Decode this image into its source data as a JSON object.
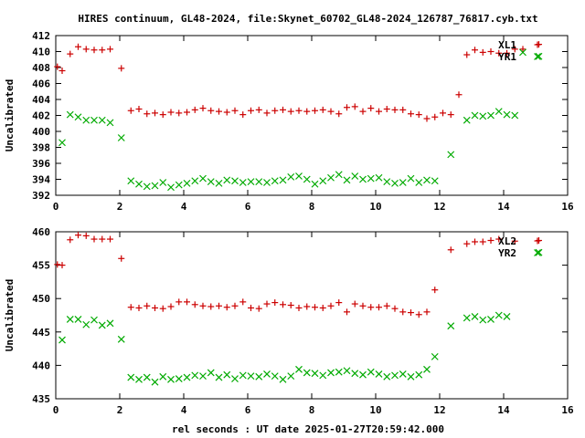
{
  "title": "HIRES continuum, GL48-2024, file:Skynet_60702_GL48-2024_126787_76817.cyb.txt",
  "xlabel": "rel seconds : UT date 2025-01-27T20:59:42.000",
  "colors": {
    "red": "#cc0000",
    "green": "#00aa00"
  },
  "chart_data": [
    {
      "type": "scatter",
      "ylabel": "Uncalibrated",
      "xlim": [
        0,
        16
      ],
      "ylim": [
        392,
        412
      ],
      "xticks": [
        0,
        2,
        4,
        6,
        8,
        10,
        12,
        14,
        16
      ],
      "yticks": [
        392,
        394,
        396,
        398,
        400,
        402,
        404,
        406,
        408,
        410,
        412
      ],
      "grid": false,
      "legend_position": "top-right",
      "series": [
        {
          "name": "XL1",
          "marker": "plus",
          "color": "#cc0000",
          "points": [
            [
              0.05,
              408.1
            ],
            [
              0.2,
              407.6
            ],
            [
              0.45,
              409.7
            ],
            [
              0.7,
              410.6
            ],
            [
              0.95,
              410.3
            ],
            [
              1.2,
              410.2
            ],
            [
              1.45,
              410.2
            ],
            [
              1.7,
              410.3
            ],
            [
              2.05,
              407.9
            ],
            [
              2.35,
              402.6
            ],
            [
              2.6,
              402.8
            ],
            [
              2.85,
              402.2
            ],
            [
              3.1,
              402.3
            ],
            [
              3.35,
              402.1
            ],
            [
              3.6,
              402.4
            ],
            [
              3.85,
              402.3
            ],
            [
              4.1,
              402.4
            ],
            [
              4.35,
              402.7
            ],
            [
              4.6,
              402.9
            ],
            [
              4.85,
              402.6
            ],
            [
              5.1,
              402.5
            ],
            [
              5.35,
              402.4
            ],
            [
              5.6,
              402.6
            ],
            [
              5.85,
              402.1
            ],
            [
              6.1,
              402.6
            ],
            [
              6.35,
              402.7
            ],
            [
              6.6,
              402.3
            ],
            [
              6.85,
              402.6
            ],
            [
              7.1,
              402.7
            ],
            [
              7.35,
              402.5
            ],
            [
              7.6,
              402.6
            ],
            [
              7.85,
              402.5
            ],
            [
              8.1,
              402.6
            ],
            [
              8.35,
              402.7
            ],
            [
              8.6,
              402.5
            ],
            [
              8.85,
              402.2
            ],
            [
              9.1,
              403.0
            ],
            [
              9.35,
              403.1
            ],
            [
              9.6,
              402.5
            ],
            [
              9.85,
              402.9
            ],
            [
              10.1,
              402.5
            ],
            [
              10.35,
              402.8
            ],
            [
              10.6,
              402.7
            ],
            [
              10.85,
              402.7
            ],
            [
              11.1,
              402.2
            ],
            [
              11.35,
              402.1
            ],
            [
              11.6,
              401.6
            ],
            [
              11.85,
              401.8
            ],
            [
              12.1,
              402.3
            ],
            [
              12.35,
              402.1
            ],
            [
              12.6,
              404.6
            ],
            [
              12.85,
              409.6
            ],
            [
              13.1,
              410.2
            ],
            [
              13.35,
              409.9
            ],
            [
              13.6,
              410.0
            ],
            [
              13.85,
              409.8
            ],
            [
              14.1,
              409.8
            ],
            [
              14.35,
              410.3
            ],
            [
              14.6,
              410.3
            ],
            [
              15.1,
              410.9
            ]
          ]
        },
        {
          "name": "YR1",
          "marker": "cross",
          "color": "#00aa00",
          "points": [
            [
              0.2,
              398.6
            ],
            [
              0.45,
              402.1
            ],
            [
              0.7,
              401.8
            ],
            [
              0.95,
              401.4
            ],
            [
              1.2,
              401.4
            ],
            [
              1.45,
              401.4
            ],
            [
              1.7,
              401.1
            ],
            [
              2.05,
              399.2
            ],
            [
              2.35,
              393.8
            ],
            [
              2.6,
              393.4
            ],
            [
              2.85,
              393.1
            ],
            [
              3.1,
              393.2
            ],
            [
              3.35,
              393.6
            ],
            [
              3.6,
              393.0
            ],
            [
              3.85,
              393.3
            ],
            [
              4.1,
              393.5
            ],
            [
              4.35,
              393.8
            ],
            [
              4.6,
              394.1
            ],
            [
              4.85,
              393.7
            ],
            [
              5.1,
              393.5
            ],
            [
              5.35,
              393.9
            ],
            [
              5.6,
              393.8
            ],
            [
              5.85,
              393.6
            ],
            [
              6.1,
              393.7
            ],
            [
              6.35,
              393.7
            ],
            [
              6.6,
              393.6
            ],
            [
              6.85,
              393.8
            ],
            [
              7.1,
              393.9
            ],
            [
              7.35,
              394.3
            ],
            [
              7.6,
              394.4
            ],
            [
              7.85,
              394.0
            ],
            [
              8.1,
              393.4
            ],
            [
              8.35,
              393.8
            ],
            [
              8.6,
              394.2
            ],
            [
              8.85,
              394.6
            ],
            [
              9.1,
              393.9
            ],
            [
              9.35,
              394.4
            ],
            [
              9.6,
              394.0
            ],
            [
              9.85,
              394.1
            ],
            [
              10.1,
              394.2
            ],
            [
              10.35,
              393.7
            ],
            [
              10.6,
              393.5
            ],
            [
              10.85,
              393.6
            ],
            [
              11.1,
              394.1
            ],
            [
              11.35,
              393.6
            ],
            [
              11.6,
              393.9
            ],
            [
              11.85,
              393.8
            ],
            [
              12.35,
              397.1
            ],
            [
              12.85,
              401.4
            ],
            [
              13.1,
              402.0
            ],
            [
              13.35,
              401.9
            ],
            [
              13.6,
              402.0
            ],
            [
              13.85,
              402.5
            ],
            [
              14.1,
              402.1
            ],
            [
              14.35,
              402.0
            ],
            [
              14.6,
              409.9
            ],
            [
              15.1,
              409.4
            ]
          ]
        }
      ]
    },
    {
      "type": "scatter",
      "ylabel": "Uncalibrated",
      "xlim": [
        0,
        16
      ],
      "ylim": [
        435,
        460
      ],
      "xticks": [
        0,
        2,
        4,
        6,
        8,
        10,
        12,
        14,
        16
      ],
      "yticks": [
        435,
        440,
        445,
        450,
        455,
        460
      ],
      "grid": false,
      "legend_position": "top-right",
      "series": [
        {
          "name": "XL2",
          "marker": "plus",
          "color": "#cc0000",
          "points": [
            [
              0.05,
              455.1
            ],
            [
              0.2,
              455.0
            ],
            [
              0.45,
              458.8
            ],
            [
              0.7,
              459.5
            ],
            [
              0.95,
              459.4
            ],
            [
              1.2,
              458.9
            ],
            [
              1.45,
              458.9
            ],
            [
              1.7,
              458.9
            ],
            [
              2.05,
              456.0
            ],
            [
              2.35,
              448.7
            ],
            [
              2.6,
              448.6
            ],
            [
              2.85,
              448.9
            ],
            [
              3.1,
              448.6
            ],
            [
              3.35,
              448.5
            ],
            [
              3.6,
              448.8
            ],
            [
              3.85,
              449.5
            ],
            [
              4.1,
              449.5
            ],
            [
              4.35,
              449.1
            ],
            [
              4.6,
              448.9
            ],
            [
              4.85,
              448.8
            ],
            [
              5.1,
              448.9
            ],
            [
              5.35,
              448.7
            ],
            [
              5.6,
              448.9
            ],
            [
              5.85,
              449.5
            ],
            [
              6.1,
              448.6
            ],
            [
              6.35,
              448.5
            ],
            [
              6.6,
              449.2
            ],
            [
              6.85,
              449.4
            ],
            [
              7.1,
              449.1
            ],
            [
              7.35,
              449.0
            ],
            [
              7.6,
              448.6
            ],
            [
              7.85,
              448.8
            ],
            [
              8.1,
              448.7
            ],
            [
              8.35,
              448.6
            ],
            [
              8.6,
              448.9
            ],
            [
              8.85,
              449.4
            ],
            [
              9.1,
              448.0
            ],
            [
              9.35,
              449.2
            ],
            [
              9.6,
              448.9
            ],
            [
              9.85,
              448.7
            ],
            [
              10.1,
              448.7
            ],
            [
              10.35,
              448.9
            ],
            [
              10.6,
              448.5
            ],
            [
              10.85,
              448.0
            ],
            [
              11.1,
              447.9
            ],
            [
              11.35,
              447.6
            ],
            [
              11.6,
              448.0
            ],
            [
              11.85,
              451.3
            ],
            [
              12.35,
              457.3
            ],
            [
              12.85,
              458.2
            ],
            [
              13.1,
              458.5
            ],
            [
              13.35,
              458.5
            ],
            [
              13.6,
              458.7
            ],
            [
              13.85,
              458.9
            ],
            [
              14.35,
              458.6
            ],
            [
              15.1,
              458.7
            ]
          ]
        },
        {
          "name": "YR2",
          "marker": "cross",
          "color": "#00aa00",
          "points": [
            [
              0.2,
              443.8
            ],
            [
              0.45,
              446.9
            ],
            [
              0.7,
              446.9
            ],
            [
              0.95,
              446.1
            ],
            [
              1.2,
              446.8
            ],
            [
              1.45,
              446.0
            ],
            [
              1.7,
              446.3
            ],
            [
              2.05,
              443.9
            ],
            [
              2.35,
              438.2
            ],
            [
              2.6,
              437.9
            ],
            [
              2.85,
              438.2
            ],
            [
              3.1,
              437.5
            ],
            [
              3.35,
              438.3
            ],
            [
              3.6,
              437.9
            ],
            [
              3.85,
              438.0
            ],
            [
              4.1,
              438.2
            ],
            [
              4.35,
              438.5
            ],
            [
              4.6,
              438.4
            ],
            [
              4.85,
              438.9
            ],
            [
              5.1,
              438.2
            ],
            [
              5.35,
              438.6
            ],
            [
              5.6,
              438.0
            ],
            [
              5.85,
              438.5
            ],
            [
              6.1,
              438.4
            ],
            [
              6.35,
              438.3
            ],
            [
              6.6,
              438.7
            ],
            [
              6.85,
              438.4
            ],
            [
              7.1,
              437.9
            ],
            [
              7.35,
              438.4
            ],
            [
              7.6,
              439.4
            ],
            [
              7.85,
              438.9
            ],
            [
              8.1,
              438.8
            ],
            [
              8.35,
              438.5
            ],
            [
              8.6,
              438.9
            ],
            [
              8.85,
              439.0
            ],
            [
              9.1,
              439.2
            ],
            [
              9.35,
              438.8
            ],
            [
              9.6,
              438.6
            ],
            [
              9.85,
              439.0
            ],
            [
              10.1,
              438.7
            ],
            [
              10.35,
              438.3
            ],
            [
              10.6,
              438.5
            ],
            [
              10.85,
              438.7
            ],
            [
              11.1,
              438.3
            ],
            [
              11.35,
              438.6
            ],
            [
              11.6,
              439.4
            ],
            [
              11.85,
              441.3
            ],
            [
              12.35,
              445.9
            ],
            [
              12.85,
              447.1
            ],
            [
              13.1,
              447.3
            ],
            [
              13.35,
              446.8
            ],
            [
              13.6,
              446.9
            ],
            [
              13.85,
              447.5
            ],
            [
              14.1,
              447.3
            ],
            [
              15.1,
              456.9
            ]
          ]
        }
      ]
    }
  ]
}
